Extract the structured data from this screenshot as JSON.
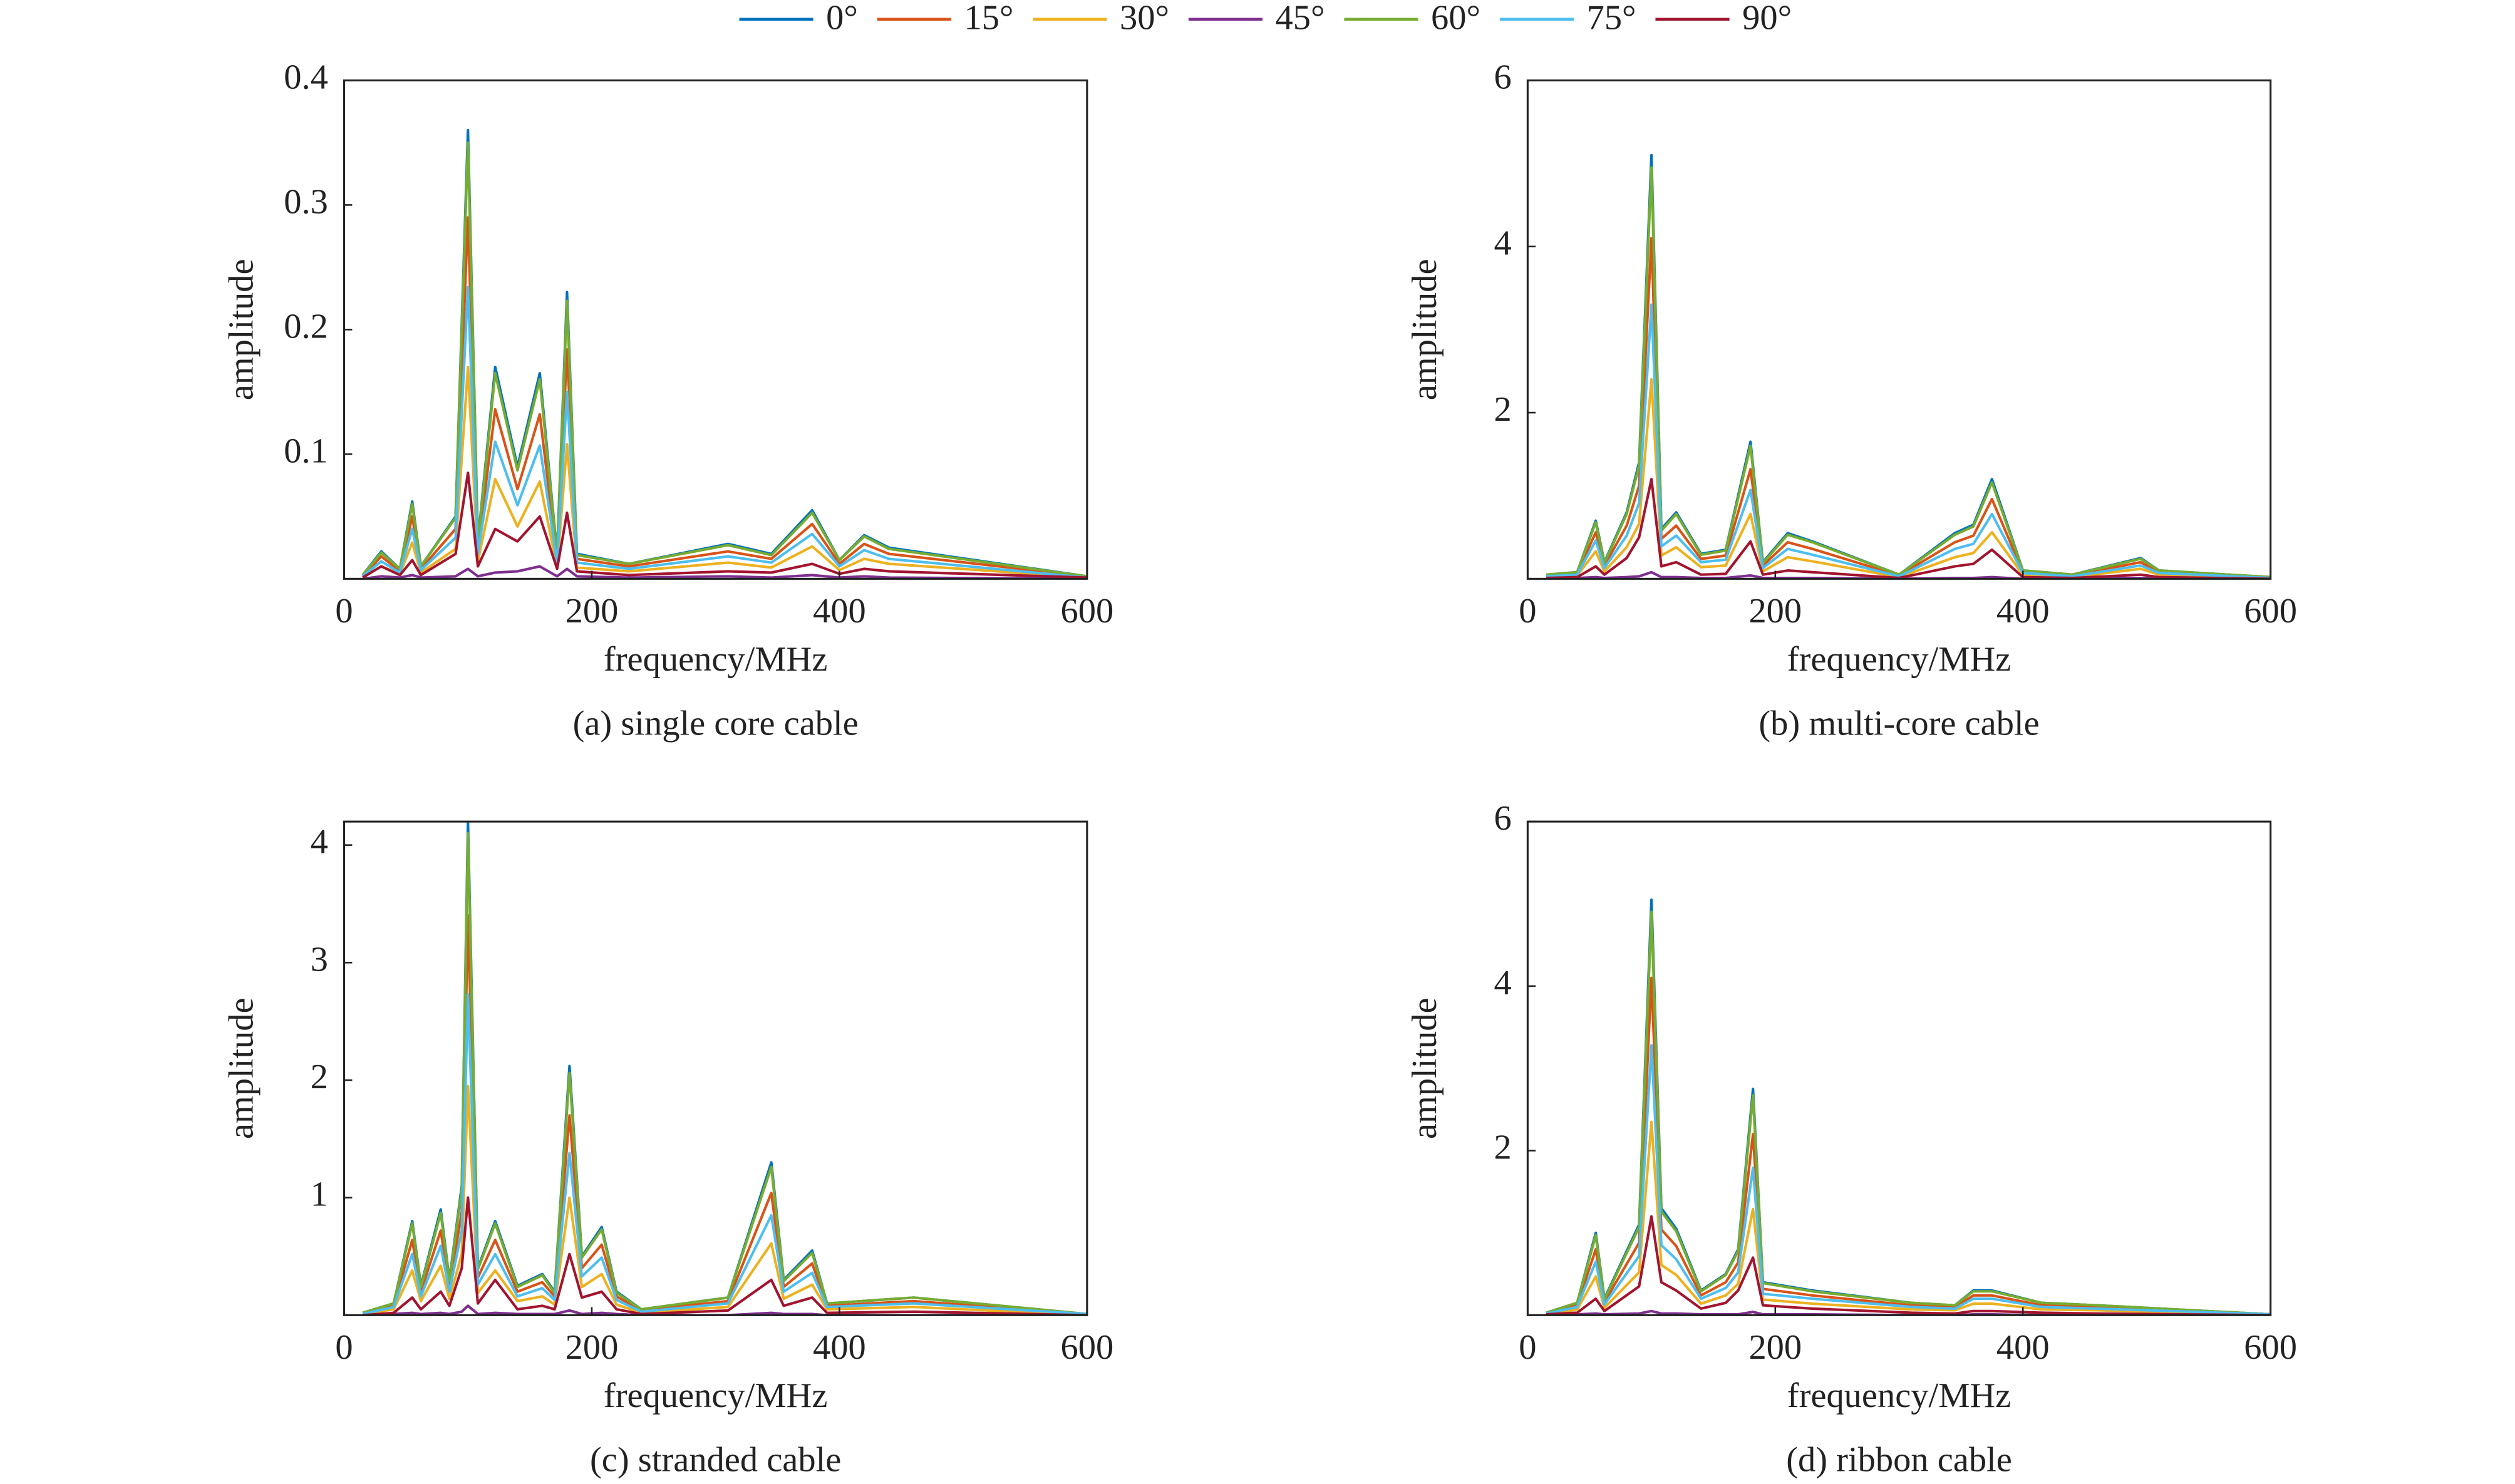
{
  "chart_data": [
    {
      "type": "line",
      "title": "(a) single core cable",
      "xlabel": "frequency/MHz",
      "ylabel": "amplitude",
      "legend": "top",
      "grid": false,
      "xlim": [
        0,
        600
      ],
      "xticks": [
        0,
        200,
        400,
        600
      ],
      "ylim": [
        0,
        0.4
      ],
      "yticks": [
        0.1,
        0.2,
        0.3,
        0.4
      ],
      "x": [
        15,
        30,
        45,
        55,
        62,
        90,
        100,
        108,
        122,
        140,
        158,
        172,
        180,
        188,
        230,
        310,
        345,
        378,
        400,
        420,
        440,
        600
      ],
      "series": [
        {
          "name": "0°",
          "color": "#0072BD",
          "values": [
            0.003,
            0.022,
            0.008,
            0.062,
            0.01,
            0.05,
            0.36,
            0.03,
            0.17,
            0.09,
            0.165,
            0.02,
            0.23,
            0.02,
            0.012,
            0.028,
            0.02,
            0.055,
            0.015,
            0.035,
            0.025,
            0.002
          ]
        },
        {
          "name": "15°",
          "color": "#D95319",
          "values": [
            0.002,
            0.018,
            0.006,
            0.05,
            0.008,
            0.04,
            0.29,
            0.024,
            0.136,
            0.072,
            0.132,
            0.016,
            0.184,
            0.016,
            0.01,
            0.022,
            0.016,
            0.044,
            0.012,
            0.028,
            0.02,
            0.002
          ]
        },
        {
          "name": "30°",
          "color": "#EDB120",
          "values": [
            0.001,
            0.01,
            0.004,
            0.029,
            0.005,
            0.024,
            0.17,
            0.014,
            0.08,
            0.042,
            0.078,
            0.009,
            0.108,
            0.009,
            0.006,
            0.013,
            0.009,
            0.026,
            0.007,
            0.016,
            0.012,
            0.001
          ]
        },
        {
          "name": "45°",
          "color": "#7E2F8E",
          "values": [
            0,
            0.002,
            0.001,
            0.003,
            0.001,
            0.002,
            0.008,
            0.002,
            0.005,
            0.006,
            0.01,
            0.002,
            0.008,
            0.002,
            0.001,
            0.002,
            0.001,
            0.003,
            0.001,
            0.002,
            0.001,
            0
          ]
        },
        {
          "name": "60°",
          "color": "#77AC30",
          "values": [
            0.003,
            0.021,
            0.008,
            0.06,
            0.01,
            0.049,
            0.35,
            0.029,
            0.165,
            0.087,
            0.16,
            0.019,
            0.223,
            0.019,
            0.012,
            0.027,
            0.019,
            0.053,
            0.015,
            0.034,
            0.024,
            0.002
          ]
        },
        {
          "name": "75°",
          "color": "#4DBEEE",
          "values": [
            0.002,
            0.014,
            0.005,
            0.04,
            0.007,
            0.033,
            0.234,
            0.02,
            0.11,
            0.059,
            0.107,
            0.013,
            0.15,
            0.013,
            0.008,
            0.018,
            0.013,
            0.036,
            0.01,
            0.023,
            0.016,
            0.001
          ]
        },
        {
          "name": "90°",
          "color": "#A2142F",
          "values": [
            0.001,
            0.01,
            0.003,
            0.015,
            0.003,
            0.02,
            0.085,
            0.01,
            0.04,
            0.03,
            0.05,
            0.008,
            0.053,
            0.006,
            0.003,
            0.006,
            0.005,
            0.012,
            0.004,
            0.008,
            0.006,
            0.001
          ]
        }
      ]
    },
    {
      "type": "line",
      "title": "(b) multi-core cable",
      "xlabel": "frequency/MHz",
      "ylabel": "amplitude",
      "grid": false,
      "xlim": [
        0,
        600
      ],
      "xticks": [
        0,
        200,
        400,
        600
      ],
      "ylim": [
        0,
        6
      ],
      "yticks": [
        2,
        4,
        6
      ],
      "x": [
        15,
        40,
        55,
        62,
        80,
        90,
        100,
        108,
        120,
        140,
        160,
        180,
        190,
        210,
        230,
        300,
        345,
        360,
        375,
        400,
        440,
        495,
        510,
        600
      ],
      "series": [
        {
          "name": "0°",
          "color": "#0072BD",
          "values": [
            0.05,
            0.08,
            0.7,
            0.2,
            0.8,
            1.4,
            5.1,
            0.6,
            0.8,
            0.3,
            0.35,
            1.65,
            0.2,
            0.55,
            0.45,
            0.05,
            0.55,
            0.65,
            1.2,
            0.1,
            0.05,
            0.25,
            0.1,
            0.02
          ]
        },
        {
          "name": "15°",
          "color": "#D95319",
          "values": [
            0.04,
            0.06,
            0.56,
            0.16,
            0.64,
            1.12,
            4.1,
            0.48,
            0.64,
            0.24,
            0.28,
            1.32,
            0.16,
            0.44,
            0.36,
            0.04,
            0.44,
            0.52,
            0.96,
            0.08,
            0.04,
            0.2,
            0.08,
            0.02
          ]
        },
        {
          "name": "30°",
          "color": "#EDB120",
          "values": [
            0.02,
            0.04,
            0.33,
            0.09,
            0.38,
            0.66,
            2.4,
            0.28,
            0.38,
            0.14,
            0.16,
            0.78,
            0.09,
            0.26,
            0.21,
            0.02,
            0.26,
            0.31,
            0.56,
            0.05,
            0.02,
            0.12,
            0.05,
            0.01
          ]
        },
        {
          "name": "45°",
          "color": "#7E2F8E",
          "values": [
            0,
            0.01,
            0.02,
            0.01,
            0.02,
            0.03,
            0.08,
            0.02,
            0.02,
            0.01,
            0.01,
            0.04,
            0.01,
            0.01,
            0.01,
            0,
            0.01,
            0.01,
            0.02,
            0,
            0,
            0.01,
            0,
            0
          ]
        },
        {
          "name": "60°",
          "color": "#77AC30",
          "values": [
            0.05,
            0.08,
            0.68,
            0.19,
            0.78,
            1.36,
            4.95,
            0.58,
            0.78,
            0.29,
            0.34,
            1.6,
            0.19,
            0.53,
            0.44,
            0.05,
            0.53,
            0.63,
            1.16,
            0.1,
            0.05,
            0.24,
            0.1,
            0.02
          ]
        },
        {
          "name": "75°",
          "color": "#4DBEEE",
          "values": [
            0.03,
            0.05,
            0.46,
            0.13,
            0.52,
            0.91,
            3.3,
            0.39,
            0.52,
            0.2,
            0.23,
            1.07,
            0.13,
            0.36,
            0.29,
            0.03,
            0.36,
            0.42,
            0.78,
            0.07,
            0.03,
            0.16,
            0.07,
            0.01
          ]
        },
        {
          "name": "90°",
          "color": "#A2142F",
          "values": [
            0.01,
            0.02,
            0.15,
            0.05,
            0.25,
            0.5,
            1.2,
            0.15,
            0.2,
            0.05,
            0.06,
            0.45,
            0.05,
            0.1,
            0.08,
            0.01,
            0.15,
            0.18,
            0.35,
            0.02,
            0.01,
            0.05,
            0.02,
            0
          ]
        }
      ]
    },
    {
      "type": "line",
      "title": "(c) stranded cable",
      "xlabel": "frequency/MHz",
      "ylabel": "amplitude",
      "grid": false,
      "xlim": [
        0,
        600
      ],
      "xticks": [
        0,
        200,
        400,
        600
      ],
      "ylim": [
        0,
        4.2
      ],
      "yticks": [
        1,
        2,
        3,
        4
      ],
      "x": [
        15,
        40,
        55,
        62,
        78,
        85,
        95,
        100,
        108,
        122,
        140,
        160,
        170,
        182,
        192,
        208,
        220,
        240,
        310,
        345,
        355,
        378,
        390,
        460,
        600
      ],
      "series": [
        {
          "name": "0°",
          "color": "#0072BD",
          "values": [
            0.02,
            0.1,
            0.8,
            0.25,
            0.9,
            0.3,
            1.1,
            4.2,
            0.4,
            0.8,
            0.25,
            0.35,
            0.2,
            2.12,
            0.5,
            0.75,
            0.2,
            0.05,
            0.15,
            1.3,
            0.3,
            0.55,
            0.1,
            0.15,
            0.01
          ]
        },
        {
          "name": "15°",
          "color": "#D95319",
          "values": [
            0.02,
            0.08,
            0.64,
            0.2,
            0.72,
            0.24,
            0.88,
            3.4,
            0.32,
            0.64,
            0.2,
            0.28,
            0.16,
            1.7,
            0.4,
            0.6,
            0.16,
            0.04,
            0.12,
            1.04,
            0.24,
            0.44,
            0.08,
            0.12,
            0.01
          ]
        },
        {
          "name": "30°",
          "color": "#EDB120",
          "values": [
            0.01,
            0.05,
            0.38,
            0.12,
            0.42,
            0.14,
            0.52,
            1.95,
            0.19,
            0.38,
            0.12,
            0.16,
            0.09,
            1,
            0.24,
            0.35,
            0.09,
            0.02,
            0.07,
            0.61,
            0.14,
            0.26,
            0.05,
            0.07,
            0
          ]
        },
        {
          "name": "45°",
          "color": "#7E2F8E",
          "values": [
            0,
            0.01,
            0.02,
            0.01,
            0.02,
            0.01,
            0.03,
            0.08,
            0.01,
            0.02,
            0.01,
            0.01,
            0.01,
            0.04,
            0.01,
            0.02,
            0.01,
            0,
            0,
            0.02,
            0.01,
            0.01,
            0,
            0,
            0
          ]
        },
        {
          "name": "60°",
          "color": "#77AC30",
          "values": [
            0.02,
            0.1,
            0.78,
            0.24,
            0.87,
            0.29,
            1.07,
            4.1,
            0.39,
            0.78,
            0.24,
            0.34,
            0.19,
            2.06,
            0.49,
            0.73,
            0.19,
            0.05,
            0.15,
            1.26,
            0.29,
            0.53,
            0.1,
            0.15,
            0.01
          ]
        },
        {
          "name": "75°",
          "color": "#4DBEEE",
          "values": [
            0.01,
            0.07,
            0.52,
            0.16,
            0.59,
            0.2,
            0.72,
            2.73,
            0.26,
            0.52,
            0.16,
            0.23,
            0.13,
            1.38,
            0.33,
            0.49,
            0.13,
            0.03,
            0.1,
            0.85,
            0.2,
            0.36,
            0.07,
            0.1,
            0.01
          ]
        },
        {
          "name": "90°",
          "color": "#A2142F",
          "values": [
            0,
            0.02,
            0.15,
            0.05,
            0.2,
            0.08,
            0.4,
            1,
            0.1,
            0.3,
            0.05,
            0.08,
            0.05,
            0.52,
            0.15,
            0.2,
            0.05,
            0.01,
            0.04,
            0.3,
            0.08,
            0.15,
            0.02,
            0.03,
            0
          ]
        }
      ]
    },
    {
      "type": "line",
      "title": "(d) ribbon cable",
      "xlabel": "frequency/MHz",
      "ylabel": "amplitude",
      "grid": false,
      "xlim": [
        0,
        600
      ],
      "xticks": [
        0,
        200,
        400,
        600
      ],
      "ylim": [
        0,
        6
      ],
      "yticks": [
        2,
        4,
        6
      ],
      "x": [
        15,
        40,
        55,
        62,
        90,
        100,
        108,
        120,
        140,
        160,
        170,
        182,
        190,
        230,
        310,
        345,
        360,
        375,
        415,
        460,
        600
      ],
      "series": [
        {
          "name": "0°",
          "color": "#0072BD",
          "values": [
            0.03,
            0.15,
            1.0,
            0.2,
            1.1,
            5.05,
            1.3,
            1.05,
            0.3,
            0.5,
            0.8,
            2.75,
            0.4,
            0.3,
            0.15,
            0.12,
            0.3,
            0.3,
            0.15,
            0.12,
            0.01
          ]
        },
        {
          "name": "15°",
          "color": "#D95319",
          "values": [
            0.02,
            0.12,
            0.8,
            0.16,
            0.88,
            4.1,
            1.04,
            0.84,
            0.24,
            0.4,
            0.64,
            2.2,
            0.32,
            0.24,
            0.12,
            0.1,
            0.24,
            0.24,
            0.12,
            0.1,
            0.01
          ]
        },
        {
          "name": "30°",
          "color": "#EDB120",
          "values": [
            0.01,
            0.07,
            0.47,
            0.09,
            0.52,
            2.35,
            0.61,
            0.49,
            0.14,
            0.24,
            0.38,
            1.29,
            0.19,
            0.14,
            0.07,
            0.06,
            0.14,
            0.14,
            0.07,
            0.06,
            0
          ]
        },
        {
          "name": "45°",
          "color": "#7E2F8E",
          "values": [
            0,
            0.01,
            0.02,
            0.01,
            0.02,
            0.05,
            0.02,
            0.02,
            0.01,
            0.01,
            0.01,
            0.04,
            0.01,
            0.01,
            0,
            0,
            0.01,
            0.01,
            0,
            0,
            0
          ]
        },
        {
          "name": "60°",
          "color": "#77AC30",
          "values": [
            0.03,
            0.15,
            0.97,
            0.19,
            1.07,
            4.9,
            1.26,
            1.02,
            0.29,
            0.49,
            0.78,
            2.67,
            0.39,
            0.29,
            0.15,
            0.12,
            0.29,
            0.29,
            0.15,
            0.12,
            0.01
          ]
        },
        {
          "name": "75°",
          "color": "#4DBEEE",
          "values": [
            0.02,
            0.1,
            0.65,
            0.13,
            0.72,
            3.28,
            0.85,
            0.68,
            0.2,
            0.33,
            0.52,
            1.79,
            0.26,
            0.2,
            0.1,
            0.08,
            0.2,
            0.2,
            0.1,
            0.08,
            0.01
          ]
        },
        {
          "name": "90°",
          "color": "#A2142F",
          "values": [
            0.01,
            0.03,
            0.2,
            0.05,
            0.35,
            1.2,
            0.4,
            0.3,
            0.08,
            0.15,
            0.3,
            0.7,
            0.12,
            0.08,
            0.03,
            0.02,
            0.05,
            0.05,
            0.03,
            0.02,
            0
          ]
        }
      ]
    }
  ]
}
